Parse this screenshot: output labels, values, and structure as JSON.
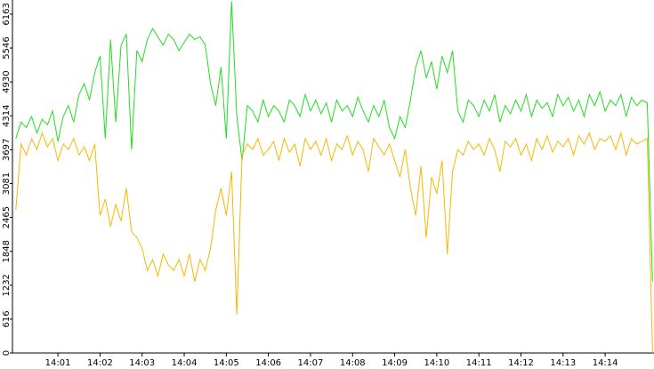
{
  "chart_data": {
    "type": "line",
    "x": [
      0,
      0.125,
      0.25,
      0.375,
      0.5,
      0.625,
      0.75,
      0.875,
      1,
      1.125,
      1.25,
      1.375,
      1.5,
      1.625,
      1.75,
      1.875,
      2,
      2.125,
      2.25,
      2.375,
      2.5,
      2.625,
      2.75,
      2.875,
      3,
      3.125,
      3.25,
      3.375,
      3.5,
      3.625,
      3.75,
      3.875,
      4,
      4.125,
      4.25,
      4.375,
      4.5,
      4.625,
      4.75,
      4.875,
      5,
      5.125,
      5.25,
      5.375,
      5.5,
      5.625,
      5.75,
      5.875,
      6,
      6.125,
      6.25,
      6.375,
      6.5,
      6.625,
      6.75,
      6.875,
      7,
      7.125,
      7.25,
      7.375,
      7.5,
      7.625,
      7.75,
      7.875,
      8,
      8.125,
      8.25,
      8.375,
      8.5,
      8.625,
      8.75,
      8.875,
      9,
      9.125,
      9.25,
      9.375,
      9.5,
      9.625,
      9.75,
      9.875,
      10,
      10.125,
      10.25,
      10.375,
      10.5,
      10.625,
      10.75,
      10.875,
      11,
      11.125,
      11.25,
      11.375,
      11.5,
      11.625,
      11.75,
      11.875,
      12,
      12.125,
      12.25,
      12.375,
      12.5,
      12.625,
      12.75,
      12.875,
      13,
      13.125,
      13.25,
      13.375,
      13.5,
      13.625,
      13.75,
      13.875,
      14,
      14.125,
      14.25,
      14.375,
      14.5,
      14.625,
      14.75,
      14.875,
      15,
      15.125
    ],
    "series": [
      {
        "color": "#22dd22",
        "values": [
          3900,
          4200,
          4100,
          4300,
          4000,
          4250,
          4150,
          4400,
          3850,
          4300,
          4500,
          4200,
          4700,
          4900,
          4600,
          5100,
          5400,
          3900,
          5700,
          4200,
          5600,
          5800,
          3700,
          5500,
          5300,
          5700,
          5900,
          5750,
          5600,
          5800,
          5700,
          5500,
          5650,
          5800,
          5700,
          5750,
          5600,
          4900,
          4500,
          5200,
          3900,
          6400,
          4300,
          3500,
          4500,
          4400,
          4200,
          4600,
          4300,
          4500,
          4400,
          4200,
          4600,
          4500,
          4300,
          4700,
          4400,
          4600,
          4350,
          4550,
          4200,
          4600,
          4400,
          4500,
          4300,
          4650,
          4400,
          4200,
          4500,
          4300,
          4600,
          4100,
          3900,
          4300,
          4100,
          4600,
          5200,
          5500,
          5000,
          5300,
          4800,
          5400,
          5100,
          5500,
          4400,
          4200,
          4600,
          4500,
          4300,
          4600,
          4400,
          4700,
          4200,
          4500,
          4350,
          4600,
          4400,
          4700,
          4300,
          4600,
          4450,
          4550,
          4300,
          4700,
          4500,
          4650,
          4400,
          4600,
          4300,
          4700,
          4500,
          4750,
          4400,
          4600,
          4500,
          4700,
          4300,
          4650,
          4500,
          4600,
          4550,
          1300
        ]
      },
      {
        "color": "#f5b800",
        "values": [
          2600,
          3800,
          3600,
          3900,
          3700,
          4000,
          3750,
          3900,
          3500,
          3800,
          3700,
          3900,
          3600,
          3750,
          3500,
          3800,
          2500,
          2800,
          2300,
          2700,
          2400,
          3000,
          2200,
          2100,
          1900,
          1500,
          1700,
          1400,
          1800,
          1600,
          1500,
          1700,
          1400,
          1800,
          1300,
          1700,
          1500,
          1900,
          2600,
          3000,
          2500,
          3300,
          700,
          3600,
          3800,
          3700,
          3900,
          3600,
          3700,
          3850,
          3500,
          3900,
          3650,
          3800,
          3400,
          3900,
          3700,
          3850,
          3600,
          3900,
          3500,
          3800,
          3700,
          3950,
          3600,
          3850,
          3700,
          3300,
          3900,
          3750,
          3600,
          3800,
          3500,
          3200,
          3700,
          3000,
          2500,
          3400,
          2100,
          3200,
          2900,
          3500,
          1800,
          3300,
          3700,
          3600,
          3850,
          3700,
          3800,
          3600,
          3900,
          3700,
          3300,
          3850,
          3750,
          3900,
          3600,
          3800,
          3500,
          3900,
          3700,
          3950,
          3650,
          3850,
          3750,
          3900,
          3600,
          3950,
          3800,
          4000,
          3700,
          3900,
          3850,
          3950,
          3700,
          4000,
          3600,
          3900,
          3800,
          3850,
          3900,
          0
        ]
      }
    ],
    "xlim": [
      -0.08,
      15.16
    ],
    "xticks": [
      {
        "value": 1,
        "label": "14:01"
      },
      {
        "value": 2,
        "label": "14:02"
      },
      {
        "value": 3,
        "label": "14:03"
      },
      {
        "value": 4,
        "label": "14:04"
      },
      {
        "value": 5,
        "label": "14:05"
      },
      {
        "value": 6,
        "label": "14:06"
      },
      {
        "value": 7,
        "label": "14:07"
      },
      {
        "value": 8,
        "label": "14:08"
      },
      {
        "value": 9,
        "label": "14:09"
      },
      {
        "value": 10,
        "label": "14:10"
      },
      {
        "value": 11,
        "label": "14:11"
      },
      {
        "value": 12,
        "label": "14:12"
      },
      {
        "value": 13,
        "label": "14:13"
      },
      {
        "value": 14,
        "label": "14:14"
      }
    ],
    "ylim": [
      0,
      6420
    ],
    "yticks": [
      0,
      616,
      1232,
      1848,
      2465,
      3081,
      3697,
      4314,
      4930,
      5546,
      6163
    ]
  }
}
